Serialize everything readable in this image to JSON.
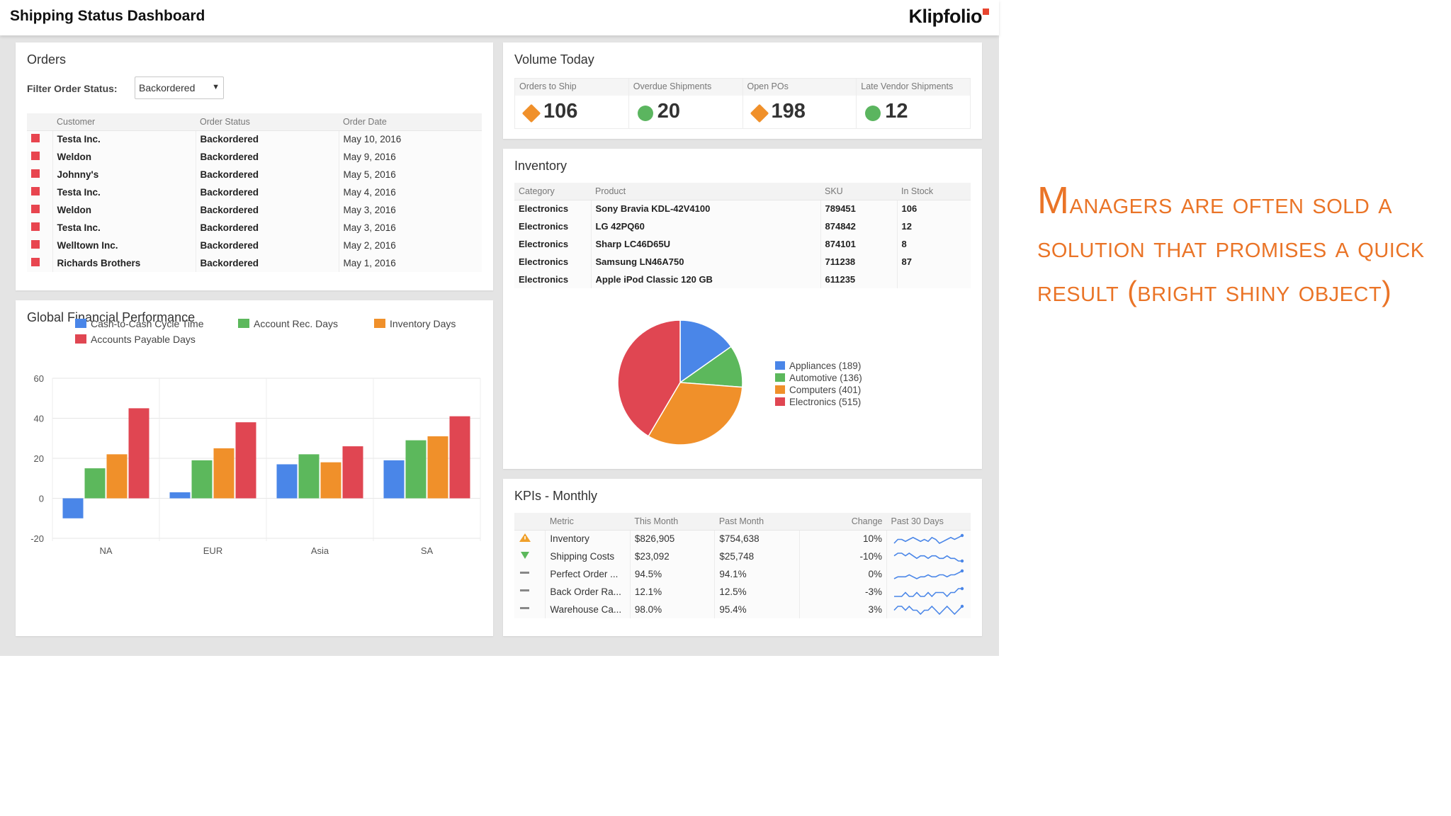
{
  "dashboard": {
    "title": "Shipping Status Dashboard",
    "brand": "Klipfolio",
    "accent_color": "#e8452f"
  },
  "orders": {
    "title": "Orders",
    "filter_label": "Filter Order Status:",
    "filter_value": "Backordered",
    "filter_arrow_icon": "caret-down-icon",
    "columns": [
      "Customer",
      "Order Status",
      "Order Date"
    ],
    "status_color": "#e8454f",
    "rows": [
      {
        "customer": "Testa Inc.",
        "status": "Backordered",
        "date": "May 10, 2016"
      },
      {
        "customer": "Weldon",
        "status": "Backordered",
        "date": "May 9, 2016"
      },
      {
        "customer": "Johnny's",
        "status": "Backordered",
        "date": "May 5, 2016"
      },
      {
        "customer": "Testa Inc.",
        "status": "Backordered",
        "date": "May 4, 2016"
      },
      {
        "customer": "Weldon",
        "status": "Backordered",
        "date": "May 3, 2016"
      },
      {
        "customer": "Testa Inc.",
        "status": "Backordered",
        "date": "May 3, 2016"
      },
      {
        "customer": "Welltown Inc.",
        "status": "Backordered",
        "date": "May 2, 2016"
      },
      {
        "customer": "Richards Brothers",
        "status": "Backordered",
        "date": "May 1, 2016"
      }
    ]
  },
  "volume": {
    "title": "Volume Today",
    "cells": [
      {
        "label": "Orders to Ship",
        "value": "106",
        "icon": "orange-diamond-icon",
        "color": "#f0902a"
      },
      {
        "label": "Overdue Shipments",
        "value": "20",
        "icon": "green-circle-icon",
        "color": "#5bb55f"
      },
      {
        "label": "Open POs",
        "value": "198",
        "icon": "orange-diamond-icon",
        "color": "#f0902a"
      },
      {
        "label": "Late Vendor Shipments",
        "value": "12",
        "icon": "green-circle-icon",
        "color": "#5bb55f"
      }
    ]
  },
  "inventory": {
    "title": "Inventory",
    "columns": [
      "Category",
      "Product",
      "SKU",
      "In Stock"
    ],
    "rows": [
      {
        "category": "Electronics",
        "product": "Sony Bravia KDL-42V4100",
        "sku": "789451",
        "stock": "106"
      },
      {
        "category": "Electronics",
        "product": "LG 42PQ60",
        "sku": "874842",
        "stock": "12"
      },
      {
        "category": "Electronics",
        "product": "Sharp LC46D65U",
        "sku": "874101",
        "stock": "8"
      },
      {
        "category": "Electronics",
        "product": "Samsung LN46A750",
        "sku": "711238",
        "stock": "87"
      },
      {
        "category": "Electronics",
        "product": "Apple iPod Classic 120 GB",
        "sku": "611235",
        "stock": ""
      }
    ]
  },
  "fin_chart_title": "Global Financial Performance",
  "kpis": {
    "title": "KPIs - Monthly",
    "columns": [
      "Metric",
      "This Month",
      "Past Month",
      "Change",
      "Past 30 Days"
    ],
    "rows": [
      {
        "icon": "warning-triangle-icon",
        "metric": "Inventory",
        "this": "$826,905",
        "past": "$754,638",
        "change": "10%"
      },
      {
        "icon": "down-triangle-icon",
        "metric": "Shipping Costs",
        "this": "$23,092",
        "past": "$25,748",
        "change": "-10%"
      },
      {
        "icon": "neutral-dash-icon",
        "metric": "Perfect Order ...",
        "this": "94.5%",
        "past": "94.1%",
        "change": "0%"
      },
      {
        "icon": "neutral-dash-icon",
        "metric": "Back Order Ra...",
        "this": "12.1%",
        "past": "12.5%",
        "change": "-3%"
      },
      {
        "icon": "neutral-dash-icon",
        "metric": "Warehouse Ca...",
        "this": "98.0%",
        "past": "95.4%",
        "change": "3%"
      }
    ]
  },
  "caption": {
    "first_letter": "M",
    "text": "anagers are often sold a solution that promises a quick result (bright shiny object)",
    "color": "#ea7427"
  },
  "chart_data": [
    {
      "type": "bar",
      "title": "Global Financial Performance",
      "categories": [
        "NA",
        "EUR",
        "Asia",
        "SA"
      ],
      "ylim": [
        -20,
        60
      ],
      "yticks": [
        -20,
        0,
        20,
        40,
        60
      ],
      "grid": true,
      "legend_position": "top",
      "series": [
        {
          "name": "Cash-to-Cash Cycle Time",
          "color": "#4a86e8",
          "values": [
            -10,
            3,
            17,
            19
          ]
        },
        {
          "name": "Account Rec. Days",
          "color": "#5cb85c",
          "values": [
            15,
            19,
            22,
            29
          ]
        },
        {
          "name": "Inventory Days",
          "color": "#f0902a",
          "values": [
            22,
            25,
            18,
            31
          ]
        },
        {
          "name": "Accounts Payable Days",
          "color": "#e04652",
          "values": [
            45,
            38,
            26,
            41
          ]
        }
      ]
    },
    {
      "type": "pie",
      "legend_position": "right",
      "slices": [
        {
          "label": "Appliances (189)",
          "value": 189,
          "color": "#4a86e8"
        },
        {
          "label": "Automotive (136)",
          "value": 136,
          "color": "#5cb85c"
        },
        {
          "label": "Computers (401)",
          "value": 401,
          "color": "#f0902a"
        },
        {
          "label": "Electronics (515)",
          "value": 515,
          "color": "#e04652"
        }
      ]
    },
    {
      "type": "line",
      "title": "Past 30 Days",
      "series": [
        {
          "name": "Inventory",
          "values": [
            3,
            5,
            5,
            4,
            5,
            6,
            5,
            4,
            5,
            4,
            6,
            5,
            3,
            4,
            5,
            6,
            5,
            6,
            7
          ]
        },
        {
          "name": "Shipping Costs",
          "values": [
            5,
            6,
            6,
            5,
            6,
            5,
            4,
            5,
            5,
            4,
            5,
            5,
            4,
            4,
            5,
            4,
            4,
            3,
            3
          ]
        },
        {
          "name": "Perfect Order ...",
          "values": [
            3,
            4,
            4,
            4,
            5,
            4,
            3,
            4,
            4,
            5,
            4,
            4,
            5,
            5,
            4,
            5,
            5,
            6,
            7
          ]
        },
        {
          "name": "Back Order Ra...",
          "values": [
            4,
            4,
            4,
            5,
            4,
            4,
            5,
            4,
            4,
            5,
            4,
            5,
            5,
            5,
            4,
            5,
            5,
            6,
            6
          ]
        },
        {
          "name": "Warehouse Ca...",
          "values": [
            5,
            6,
            6,
            5,
            6,
            5,
            5,
            4,
            5,
            5,
            6,
            5,
            4,
            5,
            6,
            5,
            4,
            5,
            6
          ]
        }
      ],
      "color": "#4a86e8"
    }
  ]
}
